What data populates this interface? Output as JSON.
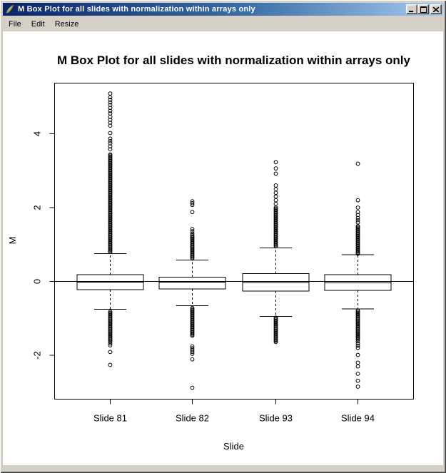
{
  "window": {
    "title": "M Box Plot for all slides with normalization within arrays only"
  },
  "menu": {
    "items": [
      "File",
      "Edit",
      "Resize"
    ]
  },
  "icons": {
    "app": "feather-icon",
    "minimize": "minimize-icon",
    "maximize": "maximize-icon",
    "close": "close-icon"
  },
  "colors": {
    "titlebar_left": "#0a246a",
    "titlebar_right": "#a6caf0",
    "chrome": "#d4d0c8",
    "plot_bg": "#ffffff",
    "plot_fg": "#000000"
  },
  "chart_data": {
    "type": "boxplot",
    "title": "M Box Plot for all slides with normalization within arrays only",
    "xlabel": "Slide",
    "ylabel": "M",
    "yticks": [
      -2,
      0,
      2,
      4
    ],
    "ylim": [
      -3.2,
      5.4
    ],
    "reference_line_y": 0,
    "grid": false,
    "categories": [
      "Slide 81",
      "Slide 82",
      "Slide 93",
      "Slide 94"
    ],
    "series": [
      {
        "label": "Slide 81",
        "whisker_low": -0.75,
        "q1": -0.22,
        "median": -0.02,
        "q3": 0.18,
        "whisker_high": 0.75,
        "stem_upper": [
          0.8,
          3.44
        ],
        "outliers_upper": [
          3.58,
          3.66,
          3.74,
          3.8,
          3.87,
          4.02,
          4.22,
          4.3,
          4.38,
          4.46,
          4.55,
          4.62,
          4.7,
          4.78,
          4.85,
          4.92,
          4.99,
          5.09
        ],
        "stem_lower": [
          -1.63,
          -0.8
        ],
        "outliers_lower": [
          -1.68,
          -1.73,
          -1.91,
          -2.26
        ]
      },
      {
        "label": "Slide 82",
        "whisker_low": -0.66,
        "q1": -0.2,
        "median": -0.02,
        "q3": 0.12,
        "whisker_high": 0.58,
        "stem_upper": [
          0.62,
          1.25
        ],
        "outliers_upper": [
          1.3,
          1.36,
          1.42,
          1.88,
          2.07,
          2.12,
          2.17
        ],
        "stem_lower": [
          -1.47,
          -0.7
        ],
        "outliers_lower": [
          -1.76,
          -1.81,
          -1.86,
          -1.91,
          -1.96,
          -2.11,
          -2.88
        ]
      },
      {
        "label": "Slide 93",
        "whisker_low": -0.95,
        "q1": -0.26,
        "median": -0.03,
        "q3": 0.21,
        "whisker_high": 0.91,
        "stem_upper": [
          0.95,
          2.0
        ],
        "outliers_upper": [
          2.1,
          2.2,
          2.3,
          2.4,
          2.5,
          2.6,
          2.92,
          3.06,
          3.23
        ],
        "stem_lower": [
          -1.64,
          -0.98
        ],
        "outliers_lower": []
      },
      {
        "label": "Slide 94",
        "whisker_low": -0.74,
        "q1": -0.24,
        "median": -0.04,
        "q3": 0.18,
        "whisker_high": 0.72,
        "stem_upper": [
          0.75,
          1.5
        ],
        "outliers_upper": [
          1.6,
          1.66,
          1.72,
          1.8,
          1.88,
          2.0,
          2.2,
          3.19
        ],
        "stem_lower": [
          -1.57,
          -0.78
        ],
        "outliers_lower": [
          -1.62,
          -1.68,
          -1.74,
          -1.8,
          -1.99,
          -2.2,
          -2.3,
          -2.5,
          -2.69,
          -2.85
        ]
      }
    ]
  }
}
